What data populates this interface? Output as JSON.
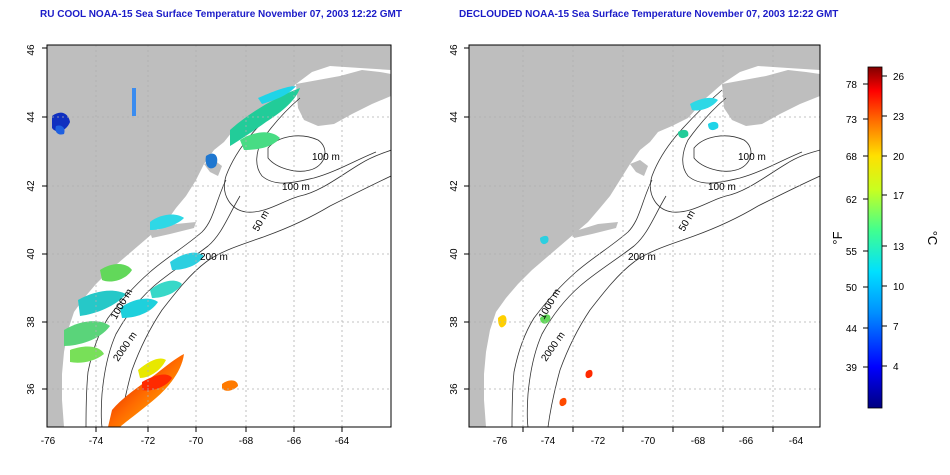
{
  "titles": {
    "left": "RU COOL NOAA-15 Sea Surface Temperature November 07, 2003 12:22 GMT",
    "right": "DECLOUDED NOAA-15 Sea Surface Temperature November 07, 2003 12:22 GMT"
  },
  "axes": {
    "lon_ticks": [
      "-76",
      "-74",
      "-72",
      "-70",
      "-68",
      "-66",
      "-64"
    ],
    "lat_ticks": [
      "36",
      "38",
      "40",
      "42",
      "44",
      "46"
    ]
  },
  "contours": {
    "left": [
      "100 m",
      "100 m",
      "50 m",
      "200 m",
      "1000 m",
      "2000 m"
    ],
    "right": [
      "100 m",
      "100 m",
      "50 m",
      "200 m",
      "1000 m",
      "2000 m"
    ]
  },
  "colorbar": {
    "fahrenheit_ticks": [
      "78",
      "73",
      "68",
      "62",
      "55",
      "50",
      "44",
      "39"
    ],
    "celsius_ticks": [
      "26",
      "23",
      "20",
      "17",
      "13",
      "10",
      "7",
      "4"
    ],
    "unit_f": "°F",
    "unit_c": "°C"
  },
  "colors": {
    "title": "#1b1bc8",
    "land": "#bebebe",
    "water": "#ffffff",
    "contour": "#333333",
    "grid": "#b0b0b0"
  }
}
